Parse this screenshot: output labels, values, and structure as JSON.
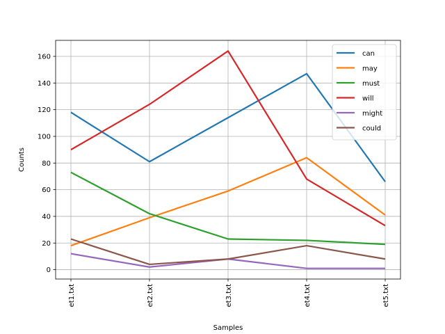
{
  "chart_data": {
    "type": "line",
    "title": "",
    "xlabel": "Samples",
    "ylabel": "Counts",
    "categories": [
      "et1.txt",
      "et2.txt",
      "et3.txt",
      "et4.txt",
      "et5.txt"
    ],
    "ylim": [
      -7,
      172
    ],
    "yticks": [
      0,
      20,
      40,
      60,
      80,
      100,
      120,
      140,
      160
    ],
    "grid": true,
    "legend_position": "top-right",
    "series": [
      {
        "name": "can",
        "color": "#1f77b4",
        "values": [
          118,
          81,
          114,
          147,
          66
        ]
      },
      {
        "name": "may",
        "color": "#ff7f0e",
        "values": [
          18,
          39,
          59,
          84,
          41
        ]
      },
      {
        "name": "must",
        "color": "#2ca02c",
        "values": [
          73,
          42,
          23,
          22,
          19
        ]
      },
      {
        "name": "will",
        "color": "#d62728",
        "values": [
          90,
          124,
          164,
          68,
          33
        ]
      },
      {
        "name": "might",
        "color": "#9467bd",
        "values": [
          12,
          2,
          8,
          1,
          1
        ]
      },
      {
        "name": "could",
        "color": "#8c564b",
        "values": [
          23,
          4,
          8,
          18,
          8
        ]
      }
    ]
  }
}
